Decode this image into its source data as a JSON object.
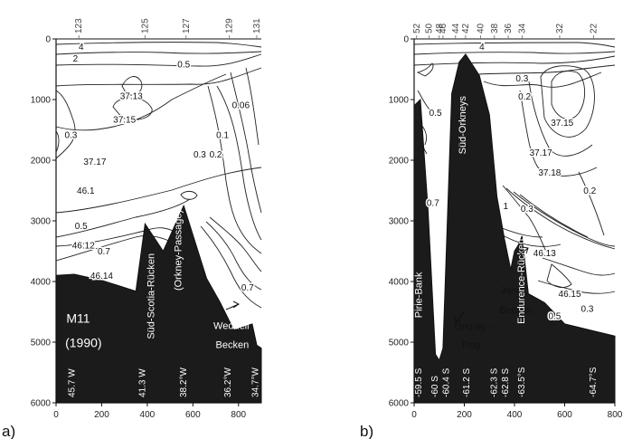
{
  "chart_data": [
    {
      "type": "contour",
      "panel_label": "a)",
      "xlim": [
        0,
        900
      ],
      "ylim": [
        6000,
        0
      ],
      "x_ticks": [
        0,
        200,
        400,
        600,
        800
      ],
      "y_ticks": [
        0,
        1000,
        2000,
        3000,
        4000,
        5000,
        6000
      ],
      "stations": [
        {
          "label": "123",
          "x": 100
        },
        {
          "label": "125",
          "x": 390
        },
        {
          "label": "127",
          "x": 570
        },
        {
          "label": "129",
          "x": 760
        },
        {
          "label": "131",
          "x": 880
        }
      ],
      "longitudes": [
        {
          "label": "45.7 W",
          "x": 65
        },
        {
          "label": "41.3 W",
          "x": 375
        },
        {
          "label": "38.2°W",
          "x": 555
        },
        {
          "label": "36.2°W",
          "x": 750
        },
        {
          "label": "34.7°W",
          "x": 870
        }
      ],
      "bottom_profile": [
        [
          0,
          3900
        ],
        [
          80,
          3880
        ],
        [
          200,
          3980
        ],
        [
          350,
          4160
        ],
        [
          390,
          3050
        ],
        [
          470,
          3500
        ],
        [
          560,
          2750
        ],
        [
          660,
          3950
        ],
        [
          720,
          4350
        ],
        [
          780,
          4800
        ],
        [
          860,
          4700
        ],
        [
          880,
          5050
        ],
        [
          900,
          5100
        ]
      ],
      "contour_labels": [
        {
          "text": "4",
          "x": 110,
          "y": 130
        },
        {
          "text": "2",
          "x": 85,
          "y": 320
        },
        {
          "text": "0.5",
          "x": 560,
          "y": 420
        },
        {
          "text": "37.13",
          "x": 330,
          "y": 940
        },
        {
          "text": "37.15",
          "x": 300,
          "y": 1330
        },
        {
          "text": "0.06",
          "x": 810,
          "y": 1090
        },
        {
          "text": "0.1",
          "x": 730,
          "y": 1580
        },
        {
          "text": "0.2",
          "x": 700,
          "y": 1900
        },
        {
          "text": "0.3",
          "x": 630,
          "y": 1900
        },
        {
          "text": "0.3",
          "x": 65,
          "y": 1580
        },
        {
          "text": "37.17",
          "x": 170,
          "y": 2020
        },
        {
          "text": "46.1",
          "x": 130,
          "y": 2500
        },
        {
          "text": "0.5",
          "x": 110,
          "y": 3080
        },
        {
          "text": "46.12",
          "x": 120,
          "y": 3400
        },
        {
          "text": "0.7",
          "x": 210,
          "y": 3500
        },
        {
          "text": "46.14",
          "x": 200,
          "y": 3900
        },
        {
          "text": "0.7",
          "x": 840,
          "y": 4100
        }
      ],
      "annotations": [
        {
          "text": "M11",
          "x": 45,
          "y": 4680
        },
        {
          "text": "(1990)",
          "x": 40,
          "y": 5080
        },
        {
          "text": "Süd-Scotia-Rücken",
          "x": 430,
          "y": 4950
        },
        {
          "text": "(Orkney-Passage)",
          "x": 550,
          "y": 4150
        },
        {
          "text": "Weddell",
          "x": 690,
          "y": 4780
        },
        {
          "text": "Becken",
          "x": 700,
          "y": 5100
        }
      ]
    },
    {
      "type": "contour",
      "panel_label": "b)",
      "xlim": [
        0,
        800
      ],
      "ylim": [
        6000,
        0
      ],
      "x_ticks": [
        0,
        200,
        400,
        600,
        800
      ],
      "y_ticks": [
        0,
        1000,
        2000,
        3000,
        4000,
        5000,
        6000
      ],
      "stations": [
        {
          "label": "52",
          "x": 10
        },
        {
          "label": "50",
          "x": 60
        },
        {
          "label": "48",
          "x": 100
        },
        {
          "label": "46",
          "x": 115
        },
        {
          "label": "44",
          "x": 165
        },
        {
          "label": "42",
          "x": 205
        },
        {
          "label": "40",
          "x": 265
        },
        {
          "label": "38",
          "x": 320
        },
        {
          "label": "36",
          "x": 375
        },
        {
          "label": "34",
          "x": 430
        },
        {
          "label": "32",
          "x": 580
        },
        {
          "label": "22",
          "x": 715
        }
      ],
      "latitudes": [
        {
          "label": "-59.5 S",
          "x": 15
        },
        {
          "label": "-60 S",
          "x": 80
        },
        {
          "label": "-60.4 S",
          "x": 125
        },
        {
          "label": "-61.2 S",
          "x": 205
        },
        {
          "label": "-62.3 S",
          "x": 315
        },
        {
          "label": "-62.8 S",
          "x": 360
        },
        {
          "label": "-63.5°S",
          "x": 425
        },
        {
          "label": "-64.7°S",
          "x": 710
        }
      ],
      "bottom_profile": [
        [
          0,
          1100
        ],
        [
          25,
          1000
        ],
        [
          55,
          2800
        ],
        [
          85,
          5200
        ],
        [
          100,
          5300
        ],
        [
          115,
          5100
        ],
        [
          150,
          900
        ],
        [
          180,
          380
        ],
        [
          205,
          250
        ],
        [
          260,
          600
        ],
        [
          300,
          1250
        ],
        [
          330,
          2600
        ],
        [
          360,
          3300
        ],
        [
          385,
          3800
        ],
        [
          400,
          3500
        ],
        [
          415,
          3400
        ],
        [
          430,
          3250
        ],
        [
          455,
          4200
        ],
        [
          520,
          4350
        ],
        [
          600,
          4700
        ],
        [
          700,
          4800
        ],
        [
          800,
          4900
        ]
      ],
      "contour_labels": [
        {
          "text": "4",
          "x": 270,
          "y": 130
        },
        {
          "text": "0.5",
          "x": 85,
          "y": 1220
        },
        {
          "text": "0.3",
          "x": 430,
          "y": 650
        },
        {
          "text": "0.2",
          "x": 440,
          "y": 950
        },
        {
          "text": "37.15",
          "x": 590,
          "y": 1380
        },
        {
          "text": "37.17",
          "x": 505,
          "y": 1870
        },
        {
          "text": "37.18",
          "x": 540,
          "y": 2200
        },
        {
          "text": "0.2",
          "x": 700,
          "y": 2500
        },
        {
          "text": "0.7",
          "x": 75,
          "y": 2700
        },
        {
          "text": "0.3",
          "x": 450,
          "y": 2800
        },
        {
          "text": "1",
          "x": 365,
          "y": 2750
        },
        {
          "text": "46.13",
          "x": 520,
          "y": 3530
        },
        {
          "text": "46.15",
          "x": 620,
          "y": 4200
        },
        {
          "text": "0.3",
          "x": 690,
          "y": 4450
        },
        {
          "text": "0.5",
          "x": 560,
          "y": 4570
        }
      ],
      "annotations": [
        {
          "text": "Süd-Orkneys",
          "x": 205,
          "y": 1900
        },
        {
          "text": "Pirie-Bank",
          "x": 30,
          "y": 4600
        },
        {
          "text": "Jane",
          "x": 345,
          "y": 4200
        },
        {
          "text": "Becken",
          "x": 340,
          "y": 4520
        },
        {
          "text": "Orkney -",
          "x": 160,
          "y": 4800
        },
        {
          "text": "Trog",
          "x": 185,
          "y": 5100
        },
        {
          "text": "Endurence-Rücken",
          "x": 440,
          "y": 4700
        }
      ]
    }
  ]
}
